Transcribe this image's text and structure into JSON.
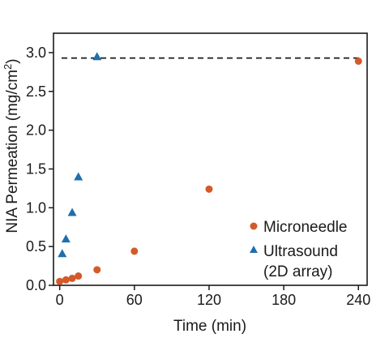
{
  "chart_data": {
    "type": "scatter",
    "xlabel": "Time (min)",
    "ylabel_main": "NIA Permeation (mg/cm",
    "ylabel_sup": "2",
    "ylabel_end": ")",
    "xlim": [
      -5,
      247
    ],
    "ylim": [
      0.0,
      3.25
    ],
    "xticks": [
      0,
      60,
      120,
      180,
      240
    ],
    "xtick_labels": [
      "0",
      "60",
      "120",
      "180",
      "240"
    ],
    "yticks": [
      0.0,
      0.5,
      1.0,
      1.5,
      2.0,
      2.5,
      3.0
    ],
    "ytick_labels": [
      "0.0",
      "0.5",
      "1.0",
      "1.5",
      "2.0",
      "2.5",
      "3.0"
    ],
    "grid": false,
    "legend_position": "bottom-right",
    "reference_line": {
      "y": 2.93,
      "style": "dashed",
      "color": "#1a1a1a"
    },
    "series": [
      {
        "name": "Microneedle",
        "marker": "circle",
        "color": "#d45a29",
        "x": [
          0,
          5,
          10,
          15,
          30,
          60,
          120,
          240
        ],
        "y": [
          0.05,
          0.07,
          0.09,
          0.12,
          0.2,
          0.44,
          1.24,
          2.89
        ]
      },
      {
        "name": "Ultrasound",
        "name_line2": "(2D array)",
        "marker": "triangle",
        "color": "#1f6fae",
        "x": [
          2,
          5,
          10,
          15,
          30
        ],
        "y": [
          0.41,
          0.6,
          0.94,
          1.4,
          2.95
        ]
      }
    ]
  }
}
